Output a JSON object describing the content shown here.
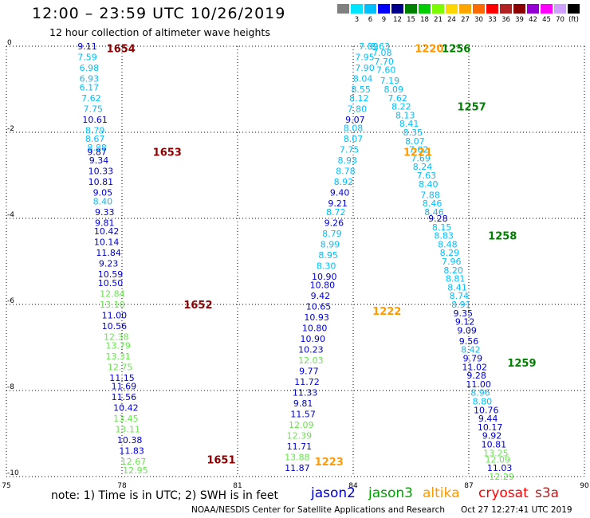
{
  "header": {
    "title": "12:00 – 23:59 UTC 10/26/2019",
    "subtitle": "12 hour collection of altimeter wave heights"
  },
  "colorbar": {
    "labels": [
      "",
      "3",
      "6",
      "9",
      "12",
      "15",
      "18",
      "21",
      "24",
      "27",
      "30",
      "33",
      "36",
      "39",
      "42",
      "45",
      "70",
      "(ft)"
    ],
    "colors": [
      "#808080",
      "#00e5ff",
      "#00bfff",
      "#0000ff",
      "#00008b",
      "#008000",
      "#00cd00",
      "#7cfc00",
      "#ffd700",
      "#ffa500",
      "#ff6a00",
      "#ff0000",
      "#b22222",
      "#8b0000",
      "#9400d3",
      "#ff00ff",
      "#d0a0ff",
      "#000000"
    ]
  },
  "footer": {
    "note": "note:  1) Time is in UTC;  2) SWH is in feet",
    "credit": "NOAA/NESDIS Center for Satellite Applications and Research",
    "timestamp": "Oct 27 12:27:41 UTC 2019"
  },
  "legend": [
    {
      "name": "jason2",
      "color": "#0000cd"
    },
    {
      "name": "jason3",
      "color": "#00a000"
    },
    {
      "name": "altika",
      "color": "#ff9900"
    },
    {
      "name": "cryosat",
      "color": "#ff0000"
    },
    {
      "name": "s3a",
      "color": "#b22222"
    }
  ],
  "chart_data": {
    "type": "scatter",
    "title": "12:00 – 23:59 UTC 10/26/2019",
    "xlim": [
      75,
      90
    ],
    "ylim": [
      -10,
      0
    ],
    "x_ticks": [
      75,
      78,
      81,
      84,
      87,
      90
    ],
    "y_ticks": [
      0,
      -2,
      -4,
      -6,
      -8,
      -10
    ],
    "grid": true,
    "palette": {
      "cyan": "#00bfff",
      "navy": "#0000cd",
      "green": "#66e64c",
      "darkred": "#8b0000",
      "orange": "#ff9900",
      "darkgreen": "#008000"
    },
    "track_labels": [
      {
        "text": "1654",
        "x": 77.6,
        "y": -0.05,
        "color": "darkred"
      },
      {
        "text": "1653",
        "x": 78.8,
        "y": -2.45,
        "color": "darkred"
      },
      {
        "text": "1652",
        "x": 79.6,
        "y": -6.0,
        "color": "darkred"
      },
      {
        "text": "1651",
        "x": 80.2,
        "y": -9.6,
        "color": "darkred"
      },
      {
        "text": "1256",
        "x": 86.3,
        "y": -0.05,
        "color": "darkgreen"
      },
      {
        "text": "1257",
        "x": 86.7,
        "y": -1.4,
        "color": "darkgreen"
      },
      {
        "text": "1258",
        "x": 87.5,
        "y": -4.4,
        "color": "darkgreen"
      },
      {
        "text": "1259",
        "x": 88.0,
        "y": -7.35,
        "color": "darkgreen"
      },
      {
        "text": "1220",
        "x": 85.6,
        "y": -0.05,
        "color": "orange"
      },
      {
        "text": "1221",
        "x": 85.3,
        "y": -2.45,
        "color": "orange"
      },
      {
        "text": "1222",
        "x": 84.5,
        "y": -6.15,
        "color": "orange"
      },
      {
        "text": "1223",
        "x": 83.0,
        "y": -9.65,
        "color": "orange"
      }
    ],
    "series": [
      {
        "name": "1654-1651",
        "points": [
          {
            "x": 77.1,
            "y": 0.0,
            "v": "9.11",
            "c": "navy"
          },
          {
            "x": 77.1,
            "y": -0.25,
            "v": "7.59",
            "c": "cyan"
          },
          {
            "x": 77.15,
            "y": -0.5,
            "v": "6.98",
            "c": "cyan"
          },
          {
            "x": 77.15,
            "y": -0.75,
            "v": "6.93",
            "c": "cyan"
          },
          {
            "x": 77.15,
            "y": -0.95,
            "v": "6.17",
            "c": "cyan"
          },
          {
            "x": 77.2,
            "y": -1.2,
            "v": "7.62",
            "c": "cyan"
          },
          {
            "x": 77.25,
            "y": -1.45,
            "v": "7.75",
            "c": "cyan"
          },
          {
            "x": 77.3,
            "y": -1.7,
            "v": "10.61",
            "c": "navy"
          },
          {
            "x": 77.3,
            "y": -1.95,
            "v": "8.79",
            "c": "cyan"
          },
          {
            "x": 77.3,
            "y": -2.15,
            "v": "8.67",
            "c": "cyan"
          },
          {
            "x": 77.35,
            "y": -2.35,
            "v": "8.88",
            "c": "cyan"
          },
          {
            "x": 77.35,
            "y": -2.45,
            "v": "9.87",
            "c": "navy"
          },
          {
            "x": 77.4,
            "y": -2.65,
            "v": "9.34",
            "c": "navy"
          },
          {
            "x": 77.45,
            "y": -2.9,
            "v": "10.33",
            "c": "navy"
          },
          {
            "x": 77.45,
            "y": -3.15,
            "v": "10.81",
            "c": "navy"
          },
          {
            "x": 77.5,
            "y": -3.4,
            "v": "9.05",
            "c": "navy"
          },
          {
            "x": 77.5,
            "y": -3.6,
            "v": "8.40",
            "c": "cyan"
          },
          {
            "x": 77.55,
            "y": -3.85,
            "v": "9.33",
            "c": "navy"
          },
          {
            "x": 77.55,
            "y": -4.1,
            "v": "9.81",
            "c": "navy"
          },
          {
            "x": 77.6,
            "y": -4.3,
            "v": "10.42",
            "c": "navy"
          },
          {
            "x": 77.6,
            "y": -4.55,
            "v": "10.14",
            "c": "navy"
          },
          {
            "x": 77.65,
            "y": -4.8,
            "v": "11.84",
            "c": "navy"
          },
          {
            "x": 77.65,
            "y": -5.05,
            "v": "9.23",
            "c": "navy"
          },
          {
            "x": 77.7,
            "y": -5.3,
            "v": "10.59",
            "c": "navy"
          },
          {
            "x": 77.7,
            "y": -5.5,
            "v": "10.50",
            "c": "navy"
          },
          {
            "x": 77.75,
            "y": -5.75,
            "v": "12.84",
            "c": "green"
          },
          {
            "x": 77.75,
            "y": -6.0,
            "v": "13.10",
            "c": "green"
          },
          {
            "x": 77.8,
            "y": -6.25,
            "v": "11.00",
            "c": "navy"
          },
          {
            "x": 77.8,
            "y": -6.5,
            "v": "10.56",
            "c": "navy"
          },
          {
            "x": 77.85,
            "y": -6.75,
            "v": "12.38",
            "c": "green"
          },
          {
            "x": 77.9,
            "y": -6.95,
            "v": "13.79",
            "c": "green"
          },
          {
            "x": 77.9,
            "y": -7.2,
            "v": "13.31",
            "c": "green"
          },
          {
            "x": 77.95,
            "y": -7.45,
            "v": "12.75",
            "c": "green"
          },
          {
            "x": 78.0,
            "y": -7.7,
            "v": "11.15",
            "c": "navy"
          },
          {
            "x": 78.05,
            "y": -7.9,
            "v": "11.69",
            "c": "navy"
          },
          {
            "x": 78.05,
            "y": -8.15,
            "v": "11.56",
            "c": "navy"
          },
          {
            "x": 78.1,
            "y": -8.4,
            "v": "10.42",
            "c": "navy"
          },
          {
            "x": 78.1,
            "y": -8.65,
            "v": "13.45",
            "c": "green"
          },
          {
            "x": 78.15,
            "y": -8.9,
            "v": "13.11",
            "c": "green"
          },
          {
            "x": 78.2,
            "y": -9.15,
            "v": "10.38",
            "c": "navy"
          },
          {
            "x": 78.25,
            "y": -9.4,
            "v": "11.83",
            "c": "navy"
          },
          {
            "x": 78.3,
            "y": -9.65,
            "v": "12.67",
            "c": "green"
          },
          {
            "x": 78.35,
            "y": -9.85,
            "v": "12.95",
            "c": "green"
          }
        ]
      },
      {
        "name": "1220-1223",
        "points": [
          {
            "x": 84.4,
            "y": 0.0,
            "v": "7.89",
            "c": "cyan"
          },
          {
            "x": 84.3,
            "y": -0.25,
            "v": "7.95",
            "c": "cyan"
          },
          {
            "x": 84.3,
            "y": -0.5,
            "v": "7.90",
            "c": "cyan"
          },
          {
            "x": 84.25,
            "y": -0.75,
            "v": "8.04",
            "c": "cyan"
          },
          {
            "x": 84.2,
            "y": -1.0,
            "v": "8.55",
            "c": "cyan"
          },
          {
            "x": 84.15,
            "y": -1.2,
            "v": "8.12",
            "c": "cyan"
          },
          {
            "x": 84.1,
            "y": -1.45,
            "v": "7.80",
            "c": "cyan"
          },
          {
            "x": 84.05,
            "y": -1.7,
            "v": "9.07",
            "c": "navy"
          },
          {
            "x": 84.0,
            "y": -1.9,
            "v": "8.08",
            "c": "cyan"
          },
          {
            "x": 84.0,
            "y": -2.15,
            "v": "8.07",
            "c": "cyan"
          },
          {
            "x": 83.9,
            "y": -2.4,
            "v": "7.75",
            "c": "cyan"
          },
          {
            "x": 83.85,
            "y": -2.65,
            "v": "8.93",
            "c": "cyan"
          },
          {
            "x": 83.8,
            "y": -2.9,
            "v": "8.78",
            "c": "cyan"
          },
          {
            "x": 83.75,
            "y": -3.15,
            "v": "8.92",
            "c": "cyan"
          },
          {
            "x": 83.65,
            "y": -3.4,
            "v": "9.40",
            "c": "navy"
          },
          {
            "x": 83.6,
            "y": -3.65,
            "v": "9.21",
            "c": "navy"
          },
          {
            "x": 83.55,
            "y": -3.85,
            "v": "8.72",
            "c": "cyan"
          },
          {
            "x": 83.5,
            "y": -4.1,
            "v": "9.26",
            "c": "navy"
          },
          {
            "x": 83.45,
            "y": -4.35,
            "v": "8.79",
            "c": "cyan"
          },
          {
            "x": 83.4,
            "y": -4.6,
            "v": "8.99",
            "c": "cyan"
          },
          {
            "x": 83.35,
            "y": -4.85,
            "v": "8.95",
            "c": "cyan"
          },
          {
            "x": 83.3,
            "y": -5.1,
            "v": "8.30",
            "c": "cyan"
          },
          {
            "x": 83.25,
            "y": -5.35,
            "v": "10.90",
            "c": "navy"
          },
          {
            "x": 83.2,
            "y": -5.55,
            "v": "10.80",
            "c": "navy"
          },
          {
            "x": 83.15,
            "y": -5.8,
            "v": "9.42",
            "c": "navy"
          },
          {
            "x": 83.1,
            "y": -6.05,
            "v": "10.65",
            "c": "navy"
          },
          {
            "x": 83.05,
            "y": -6.3,
            "v": "10.93",
            "c": "navy"
          },
          {
            "x": 83.0,
            "y": -6.55,
            "v": "10.80",
            "c": "navy"
          },
          {
            "x": 82.95,
            "y": -6.8,
            "v": "10.90",
            "c": "navy"
          },
          {
            "x": 82.9,
            "y": -7.05,
            "v": "10.23",
            "c": "navy"
          },
          {
            "x": 82.9,
            "y": -7.3,
            "v": "12.03",
            "c": "green"
          },
          {
            "x": 82.85,
            "y": -7.55,
            "v": "9.77",
            "c": "navy"
          },
          {
            "x": 82.8,
            "y": -7.8,
            "v": "11.72",
            "c": "navy"
          },
          {
            "x": 82.75,
            "y": -8.05,
            "v": "11.33",
            "c": "navy"
          },
          {
            "x": 82.7,
            "y": -8.3,
            "v": "9.81",
            "c": "navy"
          },
          {
            "x": 82.7,
            "y": -8.55,
            "v": "11.57",
            "c": "navy"
          },
          {
            "x": 82.65,
            "y": -8.8,
            "v": "12.09",
            "c": "green"
          },
          {
            "x": 82.6,
            "y": -9.05,
            "v": "12.39",
            "c": "green"
          },
          {
            "x": 82.6,
            "y": -9.3,
            "v": "11.71",
            "c": "navy"
          },
          {
            "x": 82.55,
            "y": -9.55,
            "v": "13.88",
            "c": "green"
          },
          {
            "x": 82.55,
            "y": -9.8,
            "v": "11.87",
            "c": "navy"
          }
        ]
      },
      {
        "name": "1256-1259",
        "points": [
          {
            "x": 84.7,
            "y": 0.0,
            "v": "8.63",
            "c": "cyan"
          },
          {
            "x": 84.75,
            "y": -0.15,
            "v": "7.08",
            "c": "cyan"
          },
          {
            "x": 84.8,
            "y": -0.35,
            "v": "7.70",
            "c": "cyan"
          },
          {
            "x": 84.85,
            "y": -0.55,
            "v": "7.60",
            "c": "cyan"
          },
          {
            "x": 84.95,
            "y": -0.8,
            "v": "7.19",
            "c": "cyan"
          },
          {
            "x": 85.05,
            "y": -1.0,
            "v": "8.09",
            "c": "cyan"
          },
          {
            "x": 85.15,
            "y": -1.2,
            "v": "7.62",
            "c": "cyan"
          },
          {
            "x": 85.25,
            "y": -1.4,
            "v": "8.22",
            "c": "cyan"
          },
          {
            "x": 85.35,
            "y": -1.6,
            "v": "8.13",
            "c": "cyan"
          },
          {
            "x": 85.45,
            "y": -1.8,
            "v": "8.41",
            "c": "cyan"
          },
          {
            "x": 85.55,
            "y": -2.0,
            "v": "8.35",
            "c": "cyan"
          },
          {
            "x": 85.6,
            "y": -2.2,
            "v": "8.07",
            "c": "cyan"
          },
          {
            "x": 85.7,
            "y": -2.4,
            "v": "7.02",
            "c": "cyan"
          },
          {
            "x": 85.75,
            "y": -2.6,
            "v": "7.69",
            "c": "cyan"
          },
          {
            "x": 85.8,
            "y": -2.8,
            "v": "8.24",
            "c": "cyan"
          },
          {
            "x": 85.9,
            "y": -3.0,
            "v": "7.63",
            "c": "cyan"
          },
          {
            "x": 85.95,
            "y": -3.2,
            "v": "8.40",
            "c": "cyan"
          },
          {
            "x": 86.0,
            "y": -3.45,
            "v": "7.88",
            "c": "cyan"
          },
          {
            "x": 86.05,
            "y": -3.65,
            "v": "8.46",
            "c": "cyan"
          },
          {
            "x": 86.1,
            "y": -3.85,
            "v": "8.46",
            "c": "cyan"
          },
          {
            "x": 86.2,
            "y": -4.0,
            "v": "9.28",
            "c": "navy"
          },
          {
            "x": 86.3,
            "y": -4.2,
            "v": "8.15",
            "c": "cyan"
          },
          {
            "x": 86.35,
            "y": -4.4,
            "v": "8.83",
            "c": "cyan"
          },
          {
            "x": 86.45,
            "y": -4.6,
            "v": "8.48",
            "c": "cyan"
          },
          {
            "x": 86.5,
            "y": -4.8,
            "v": "8.29",
            "c": "cyan"
          },
          {
            "x": 86.55,
            "y": -5.0,
            "v": "7.96",
            "c": "cyan"
          },
          {
            "x": 86.6,
            "y": -5.2,
            "v": "8.20",
            "c": "cyan"
          },
          {
            "x": 86.65,
            "y": -5.4,
            "v": "8.81",
            "c": "cyan"
          },
          {
            "x": 86.7,
            "y": -5.6,
            "v": "8.41",
            "c": "cyan"
          },
          {
            "x": 86.75,
            "y": -5.8,
            "v": "8.74",
            "c": "cyan"
          },
          {
            "x": 86.8,
            "y": -6.0,
            "v": "8.91",
            "c": "cyan"
          },
          {
            "x": 86.85,
            "y": -6.2,
            "v": "9.35",
            "c": "navy"
          },
          {
            "x": 86.9,
            "y": -6.4,
            "v": "9.12",
            "c": "navy"
          },
          {
            "x": 86.95,
            "y": -6.6,
            "v": "9.09",
            "c": "navy"
          },
          {
            "x": 87.0,
            "y": -6.85,
            "v": "9.56",
            "c": "navy"
          },
          {
            "x": 87.05,
            "y": -7.05,
            "v": "8.42",
            "c": "cyan"
          },
          {
            "x": 87.1,
            "y": -7.25,
            "v": "9.79",
            "c": "navy"
          },
          {
            "x": 87.15,
            "y": -7.45,
            "v": "11.02",
            "c": "navy"
          },
          {
            "x": 87.2,
            "y": -7.65,
            "v": "9.28",
            "c": "navy"
          },
          {
            "x": 87.25,
            "y": -7.85,
            "v": "11.00",
            "c": "navy"
          },
          {
            "x": 87.3,
            "y": -8.05,
            "v": "8.96",
            "c": "cyan"
          },
          {
            "x": 87.35,
            "y": -8.25,
            "v": "8.80",
            "c": "cyan"
          },
          {
            "x": 87.45,
            "y": -8.45,
            "v": "10.76",
            "c": "navy"
          },
          {
            "x": 87.5,
            "y": -8.65,
            "v": "9.44",
            "c": "navy"
          },
          {
            "x": 87.55,
            "y": -8.85,
            "v": "10.17",
            "c": "navy"
          },
          {
            "x": 87.6,
            "y": -9.05,
            "v": "9.92",
            "c": "navy"
          },
          {
            "x": 87.65,
            "y": -9.25,
            "v": "10.81",
            "c": "navy"
          },
          {
            "x": 87.7,
            "y": -9.45,
            "v": "13.25",
            "c": "green"
          },
          {
            "x": 87.75,
            "y": -9.6,
            "v": "12.09",
            "c": "green"
          },
          {
            "x": 87.8,
            "y": -9.8,
            "v": "11.03",
            "c": "navy"
          },
          {
            "x": 87.85,
            "y": -10.0,
            "v": "12.29",
            "c": "green"
          }
        ]
      }
    ]
  }
}
